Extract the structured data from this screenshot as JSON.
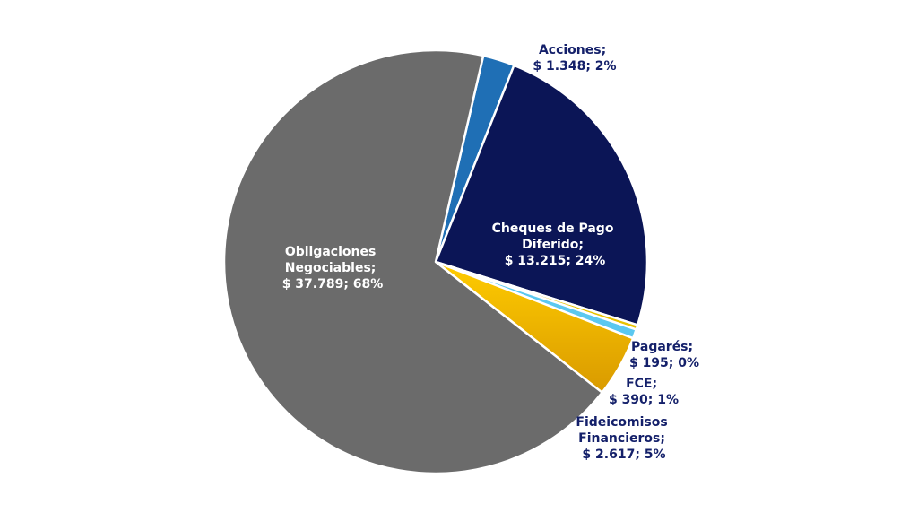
{
  "chart_data": {
    "type": "pie",
    "title": "",
    "slices": [
      {
        "name": "Acciones",
        "amount": "$ 1.348",
        "value": 1348,
        "percent": "2%",
        "color": "#1f6fb5",
        "label_line1": "Acciones;",
        "label_line2": "$ 1.348; 2%",
        "label_line3": ""
      },
      {
        "name": "Cheques de Pago Diferido",
        "amount": "$ 13.215",
        "value": 13215,
        "percent": "24%",
        "color": "#0b1556",
        "label_line1": "Cheques de Pago",
        "label_line2": "Diferido;",
        "label_line3": "$ 13.215; 24%"
      },
      {
        "name": "Pagarés",
        "amount": "$ 195",
        "value": 195,
        "percent": "0%",
        "color": "#e8c200",
        "label_line1": "Pagarés;",
        "label_line2": "$ 195; 0%",
        "label_line3": ""
      },
      {
        "name": "FCE",
        "amount": "$ 390",
        "value": 390,
        "percent": "1%",
        "color": "#5bc8f0",
        "label_line1": "FCE;",
        "label_line2": "$ 390; 1%",
        "label_line3": ""
      },
      {
        "name": "Fideicomisos Financieros",
        "amount": "$ 2.617",
        "value": 2617,
        "percent": "5%",
        "color": "#e6ac00",
        "label_line1": "Fideicomisos",
        "label_line2": "Financieros;",
        "label_line3": "$ 2.617; 5%"
      },
      {
        "name": "Obligaciones Negociables",
        "amount": "$ 37.789",
        "value": 37789,
        "percent": "68%",
        "color": "#6b6b6b",
        "label_line1": "Obligaciones",
        "label_line2": "Negociables;",
        "label_line3": "$ 37.789; 68%"
      }
    ],
    "legend": "none",
    "data_labels": "category; value; percent"
  }
}
